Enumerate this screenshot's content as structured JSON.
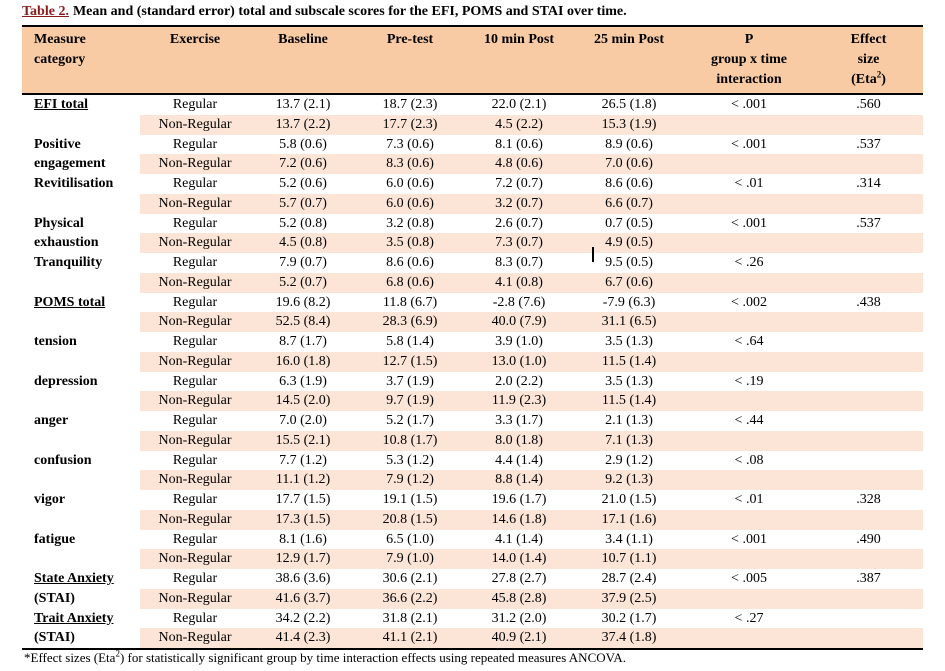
{
  "colors": {
    "header_bg": "#f8cba4",
    "band_bg": "#fce4d6",
    "title_red": "#8b1a1a",
    "border": "#000000"
  },
  "title": {
    "label": "Table 2.",
    "rest": "Mean and (standard error) total and subscale scores for the EFI, POMS and STAI over time."
  },
  "header": {
    "measure": [
      "Measure",
      "category"
    ],
    "exercise": "Exercise",
    "baseline": "Baseline",
    "pretest": "Pre-test",
    "post10": "10 min Post",
    "post25": "25 min Post",
    "p": [
      "P",
      "group x time",
      "interaction"
    ],
    "effect": [
      "Effect",
      "size"
    ],
    "effect_line3": {
      "pre": "(Eta",
      "sup": "2",
      "post": ")"
    }
  },
  "exercise_labels": [
    "Regular",
    "Non-Regular"
  ],
  "measures": [
    {
      "name_lines": [
        "EFI total"
      ],
      "underline": true,
      "regular": [
        "13.7 (2.1)",
        "18.7 (2.3)",
        "22.0 (2.1)",
        "26.5 (1.8)"
      ],
      "non_regular": [
        "13.7 (2.2)",
        "17.7 (2.3)",
        "4.5 (2.2)",
        "15.3 (1.9)"
      ],
      "p": "< .001",
      "effect": ".560"
    },
    {
      "name_lines": [
        "Positive",
        "engagement"
      ],
      "underline": false,
      "regular": [
        "5.8 (0.6)",
        "7.3 (0.6)",
        "8.1 (0.6)",
        "8.9 (0.6)"
      ],
      "non_regular": [
        "7.2 (0.6)",
        "8.3 (0.6)",
        "4.8 (0.6)",
        "7.0 (0.6)"
      ],
      "p": "< .001",
      "effect": ".537"
    },
    {
      "name_lines": [
        "Revitilisation"
      ],
      "underline": false,
      "regular": [
        "5.2 (0.6)",
        "6.0 (0.6)",
        "7.2 (0.7)",
        "8.6 (0.6)"
      ],
      "non_regular": [
        "5.7 (0.7)",
        "6.0 (0.6)",
        "3.2 (0.7)",
        "6.6 (0.7)"
      ],
      "p": "< .01",
      "effect": ".314"
    },
    {
      "name_lines": [
        "Physical",
        "exhaustion"
      ],
      "underline": false,
      "regular": [
        "5.2 (0.8)",
        "3.2 (0.8)",
        "2.6 (0.7)",
        "0.7 (0.5)"
      ],
      "non_regular": [
        "4.5 (0.8)",
        "3.5 (0.8)",
        "7.3 (0.7)",
        "4.9 (0.5)"
      ],
      "p": "< .001",
      "effect": ".537"
    },
    {
      "name_lines": [
        "Tranquility"
      ],
      "underline": false,
      "regular": [
        "7.9 (0.7)",
        "8.6 (0.6)",
        "8.3 (0.7)",
        "9.5 (0.5)"
      ],
      "non_regular": [
        "5.2 (0.7)",
        "6.8 (0.6)",
        "4.1 (0.8)",
        "6.7 (0.6)"
      ],
      "p": "< .26",
      "effect": ""
    },
    {
      "name_lines": [
        "POMS total"
      ],
      "underline": true,
      "regular": [
        "19.6 (8.2)",
        "11.8 (6.7)",
        "-2.8 (7.6)",
        "-7.9 (6.3)"
      ],
      "non_regular": [
        "52.5 (8.4)",
        "28.3 (6.9)",
        "40.0 (7.9)",
        "31.1 (6.5)"
      ],
      "p": "< .002",
      "effect": ".438"
    },
    {
      "name_lines": [
        "tension"
      ],
      "underline": false,
      "regular": [
        "8.7 (1.7)",
        "5.8 (1.4)",
        "3.9 (1.0)",
        "3.5 (1.3)"
      ],
      "non_regular": [
        "16.0 (1.8)",
        "12.7 (1.5)",
        "13.0 (1.0)",
        "11.5 (1.4)"
      ],
      "p": "< .64",
      "effect": ""
    },
    {
      "name_lines": [
        "depression"
      ],
      "underline": false,
      "regular": [
        "6.3 (1.9)",
        "3.7 (1.9)",
        "2.0 (2.2)",
        "3.5 (1.3)"
      ],
      "non_regular": [
        "14.5 (2.0)",
        "9.7 (1.9)",
        "11.9 (2.3)",
        "11.5 (1.4)"
      ],
      "p": "< .19",
      "effect": ""
    },
    {
      "name_lines": [
        "anger"
      ],
      "underline": false,
      "regular": [
        "7.0 (2.0)",
        "5.2 (1.7)",
        "3.3 (1.7)",
        "2.1 (1.3)"
      ],
      "non_regular": [
        "15.5 (2.1)",
        "10.8 (1.7)",
        "8.0 (1.8)",
        "7.1 (1.3)"
      ],
      "p": "< .44",
      "effect": ""
    },
    {
      "name_lines": [
        "confusion"
      ],
      "underline": false,
      "regular": [
        "7.7 (1.2)",
        "5.3 (1.2)",
        "4.4 (1.4)",
        "2.9 (1.2)"
      ],
      "non_regular": [
        "11.1 (1.2)",
        "7.9 (1.2)",
        "8.8 (1.4)",
        "9.2 (1.3)"
      ],
      "p": "< .08",
      "effect": ""
    },
    {
      "name_lines": [
        "vigor"
      ],
      "underline": false,
      "regular": [
        "17.7 (1.5)",
        "19.1 (1.5)",
        "19.6 (1.7)",
        "21.0 (1.5)"
      ],
      "non_regular": [
        "17.3 (1.5)",
        "20.8 (1.5)",
        "14.6 (1.8)",
        "17.1 (1.6)"
      ],
      "p": "< .01",
      "effect": ".328"
    },
    {
      "name_lines": [
        "fatigue"
      ],
      "underline": false,
      "regular": [
        "8.1 (1.6)",
        "6.5 (1.0)",
        "4.1 (1.4)",
        "3.4 (1.1)"
      ],
      "non_regular": [
        "12.9 (1.7)",
        "7.9 (1.0)",
        "14.0 (1.4)",
        "10.7 (1.1)"
      ],
      "p": "< .001",
      "effect": ".490"
    },
    {
      "name_lines": [
        "State Anxiety",
        "(STAI)"
      ],
      "underline": true,
      "regular": [
        "38.6 (3.6)",
        "30.6 (2.1)",
        "27.8 (2.7)",
        "28.7 (2.4)"
      ],
      "non_regular": [
        "41.6 (3.7)",
        "36.6 (2.2)",
        "45.8 (2.8)",
        "37.9 (2.5)"
      ],
      "p": "< .005",
      "effect": ".387"
    },
    {
      "name_lines": [
        "Trait Anxiety",
        "(STAI)"
      ],
      "underline": true,
      "regular": [
        "34.2 (2.2)",
        "31.8 (2.1)",
        "31.2 (2.0)",
        "30.2 (1.7)"
      ],
      "non_regular": [
        "41.4 (2.3)",
        "41.1 (2.1)",
        "40.9 (2.1)",
        "37.4 (1.8)"
      ],
      "p": "< .27",
      "effect": ""
    }
  ],
  "footnote": {
    "pre": "*Effect sizes (Eta",
    "sup": "2",
    "post": ") for statistically significant group by time interaction effects using repeated measures ANCOVA."
  }
}
